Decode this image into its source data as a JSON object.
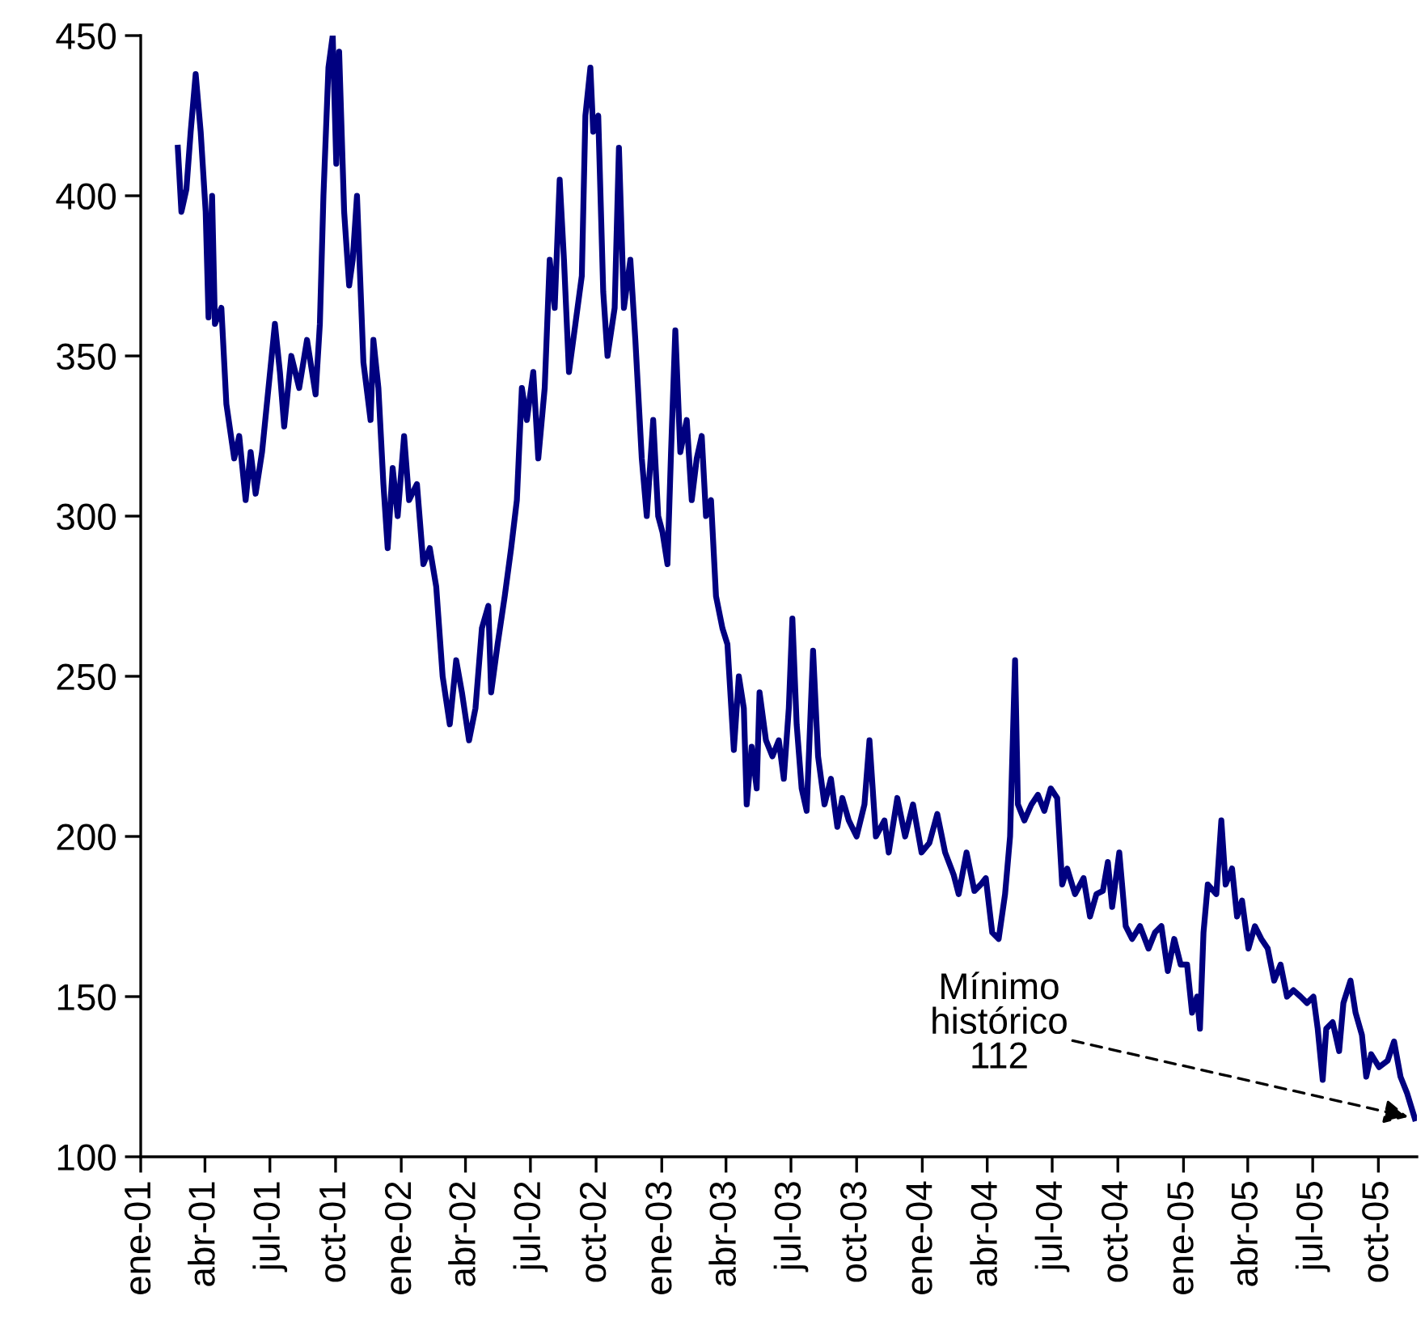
{
  "chart_data": {
    "type": "line",
    "x": [
      "2001-02-22",
      "2001-02-27",
      "2001-03-06",
      "2001-03-12",
      "2001-03-19",
      "2001-03-26",
      "2001-04-02",
      "2001-04-06",
      "2001-04-11",
      "2001-04-15",
      "2001-04-24",
      "2001-05-01",
      "2001-05-12",
      "2001-05-19",
      "2001-05-28",
      "2001-06-04",
      "2001-06-11",
      "2001-06-20",
      "2001-07-08",
      "2001-07-15",
      "2001-07-21",
      "2001-07-31",
      "2001-08-11",
      "2001-08-22",
      "2001-09-03",
      "2001-09-09",
      "2001-09-14",
      "2001-09-21",
      "2001-09-27",
      "2001-10-02",
      "2001-10-06",
      "2001-10-13",
      "2001-10-20",
      "2001-10-25",
      "2001-10-31",
      "2001-11-09",
      "2001-11-19",
      "2001-11-23",
      "2001-11-30",
      "2001-12-07",
      "2001-12-13",
      "2001-12-20",
      "2001-12-27",
      "2002-01-05",
      "2002-01-12",
      "2002-01-23",
      "2002-02-01",
      "2002-02-10",
      "2002-02-19",
      "2002-02-28",
      "2002-03-10",
      "2002-03-19",
      "2002-03-27",
      "2002-04-06",
      "2002-04-15",
      "2002-04-24",
      "2002-05-03",
      "2002-05-07",
      "2002-05-16",
      "2002-05-26",
      "2002-06-04",
      "2002-06-12",
      "2002-06-19",
      "2002-06-26",
      "2002-07-05",
      "2002-07-12",
      "2002-07-21",
      "2002-07-28",
      "2002-08-04",
      "2002-08-11",
      "2002-08-17",
      "2002-08-24",
      "2002-09-02",
      "2002-09-11",
      "2002-09-16",
      "2002-09-23",
      "2002-09-27",
      "2002-10-04",
      "2002-10-11",
      "2002-10-17",
      "2002-10-27",
      "2002-11-02",
      "2002-11-09",
      "2002-11-18",
      "2002-11-25",
      "2002-12-04",
      "2002-12-11",
      "2002-12-20",
      "2002-12-27",
      "2003-01-02",
      "2003-01-09",
      "2003-01-14",
      "2003-01-20",
      "2003-01-27",
      "2003-02-05",
      "2003-02-12",
      "2003-02-19",
      "2003-02-26",
      "2003-03-04",
      "2003-03-11",
      "2003-03-18",
      "2003-03-27",
      "2003-04-03",
      "2003-04-12",
      "2003-04-19",
      "2003-04-26",
      "2003-04-30",
      "2003-05-07",
      "2003-05-14",
      "2003-05-18",
      "2003-05-27",
      "2003-06-05",
      "2003-06-14",
      "2003-06-21",
      "2003-06-28",
      "2003-07-03",
      "2003-07-09",
      "2003-07-16",
      "2003-07-23",
      "2003-08-01",
      "2003-08-08",
      "2003-08-17",
      "2003-08-26",
      "2003-09-04",
      "2003-09-11",
      "2003-09-20",
      "2003-10-01",
      "2003-10-12",
      "2003-10-19",
      "2003-10-28",
      "2003-11-09",
      "2003-11-15",
      "2003-11-27",
      "2003-12-08",
      "2003-12-19",
      "2003-12-31",
      "2004-01-11",
      "2004-01-22",
      "2004-02-02",
      "2004-02-14",
      "2004-02-21",
      "2004-03-03",
      "2004-03-14",
      "2004-03-23",
      "2004-03-30",
      "2004-04-08",
      "2004-04-17",
      "2004-04-26",
      "2004-05-03",
      "2004-05-10",
      "2004-05-14",
      "2004-05-23",
      "2004-06-02",
      "2004-06-11",
      "2004-06-20",
      "2004-06-29",
      "2004-07-08",
      "2004-07-15",
      "2004-07-22",
      "2004-08-02",
      "2004-08-14",
      "2004-08-23",
      "2004-09-01",
      "2004-09-10",
      "2004-09-17",
      "2004-09-23",
      "2004-10-03",
      "2004-10-12",
      "2004-10-21",
      "2004-11-01",
      "2004-11-13",
      "2004-11-22",
      "2004-12-01",
      "2004-12-10",
      "2004-12-19",
      "2004-12-28",
      "2005-01-06",
      "2005-01-13",
      "2005-01-20",
      "2005-01-24",
      "2005-01-29",
      "2005-02-04",
      "2005-02-16",
      "2005-02-23",
      "2005-03-01",
      "2005-03-10",
      "2005-03-17",
      "2005-03-24",
      "2005-04-02",
      "2005-04-11",
      "2005-04-20",
      "2005-04-29",
      "2005-05-08",
      "2005-05-17",
      "2005-05-26",
      "2005-06-04",
      "2005-06-14",
      "2005-06-23",
      "2005-07-02",
      "2005-07-08",
      "2005-07-15",
      "2005-07-20",
      "2005-07-29",
      "2005-08-07",
      "2005-08-13",
      "2005-08-23",
      "2005-08-30",
      "2005-09-08",
      "2005-09-14",
      "2005-09-21",
      "2005-10-02",
      "2005-10-14",
      "2005-10-23",
      "2005-11-01",
      "2005-11-10",
      "2005-11-21"
    ],
    "values": [
      415,
      395,
      402,
      420,
      438,
      420,
      395,
      362,
      400,
      360,
      365,
      335,
      318,
      325,
      305,
      320,
      307,
      320,
      360,
      345,
      328,
      350,
      340,
      355,
      338,
      360,
      400,
      440,
      450,
      410,
      445,
      395,
      372,
      380,
      400,
      348,
      330,
      355,
      340,
      310,
      290,
      315,
      300,
      325,
      305,
      310,
      285,
      290,
      278,
      250,
      235,
      255,
      245,
      230,
      240,
      265,
      272,
      245,
      260,
      275,
      290,
      305,
      340,
      330,
      345,
      318,
      340,
      380,
      365,
      405,
      380,
      345,
      360,
      375,
      425,
      440,
      420,
      425,
      370,
      350,
      365,
      415,
      365,
      380,
      355,
      318,
      300,
      330,
      300,
      295,
      285,
      320,
      358,
      320,
      330,
      305,
      318,
      325,
      300,
      305,
      275,
      265,
      260,
      227,
      250,
      240,
      210,
      228,
      215,
      245,
      230,
      225,
      230,
      218,
      240,
      268,
      235,
      215,
      208,
      258,
      225,
      210,
      218,
      203,
      212,
      205,
      200,
      210,
      230,
      200,
      205,
      195,
      212,
      200,
      210,
      195,
      198,
      207,
      195,
      188,
      182,
      195,
      183,
      185,
      187,
      170,
      168,
      182,
      200,
      255,
      210,
      205,
      210,
      213,
      208,
      215,
      212,
      185,
      190,
      182,
      187,
      175,
      182,
      183,
      192,
      178,
      195,
      172,
      168,
      172,
      165,
      170,
      172,
      158,
      168,
      160,
      160,
      145,
      150,
      140,
      170,
      185,
      182,
      205,
      185,
      190,
      175,
      180,
      165,
      172,
      168,
      165,
      155,
      160,
      150,
      152,
      150,
      148,
      150,
      140,
      124,
      140,
      142,
      133,
      148,
      155,
      145,
      138,
      125,
      132,
      128,
      130,
      136,
      125,
      120,
      112
    ],
    "color": "#000080",
    "xlim": [
      "2001-01-01",
      "2005-11-24"
    ],
    "xticks": [
      {
        "value": "2001-01-01",
        "label": "ene-01"
      },
      {
        "value": "2001-04-01",
        "label": "abr-01"
      },
      {
        "value": "2001-07-01",
        "label": "jul-01"
      },
      {
        "value": "2001-10-01",
        "label": "oct-01"
      },
      {
        "value": "2002-01-01",
        "label": "ene-02"
      },
      {
        "value": "2002-04-01",
        "label": "abr-02"
      },
      {
        "value": "2002-07-01",
        "label": "jul-02"
      },
      {
        "value": "2002-10-01",
        "label": "oct-02"
      },
      {
        "value": "2003-01-01",
        "label": "ene-03"
      },
      {
        "value": "2003-04-01",
        "label": "abr-03"
      },
      {
        "value": "2003-07-01",
        "label": "jul-03"
      },
      {
        "value": "2003-10-01",
        "label": "oct-03"
      },
      {
        "value": "2004-01-01",
        "label": "ene-04"
      },
      {
        "value": "2004-04-01",
        "label": "abr-04"
      },
      {
        "value": "2004-07-01",
        "label": "jul-04"
      },
      {
        "value": "2004-10-01",
        "label": "oct-04"
      },
      {
        "value": "2005-01-01",
        "label": "ene-05"
      },
      {
        "value": "2005-04-01",
        "label": "abr-05"
      },
      {
        "value": "2005-07-01",
        "label": "jul-05"
      },
      {
        "value": "2005-10-01",
        "label": "oct-05"
      }
    ],
    "ylim": [
      100,
      450
    ],
    "yticks": [
      100,
      150,
      200,
      250,
      300,
      350,
      400,
      450
    ],
    "annotations": [
      {
        "text": "Mínimo\nhistórico\n112",
        "x": "2005-11-21",
        "y": 112
      }
    ],
    "grid": false,
    "legend": false,
    "marker": "none",
    "line_style": "solid"
  }
}
